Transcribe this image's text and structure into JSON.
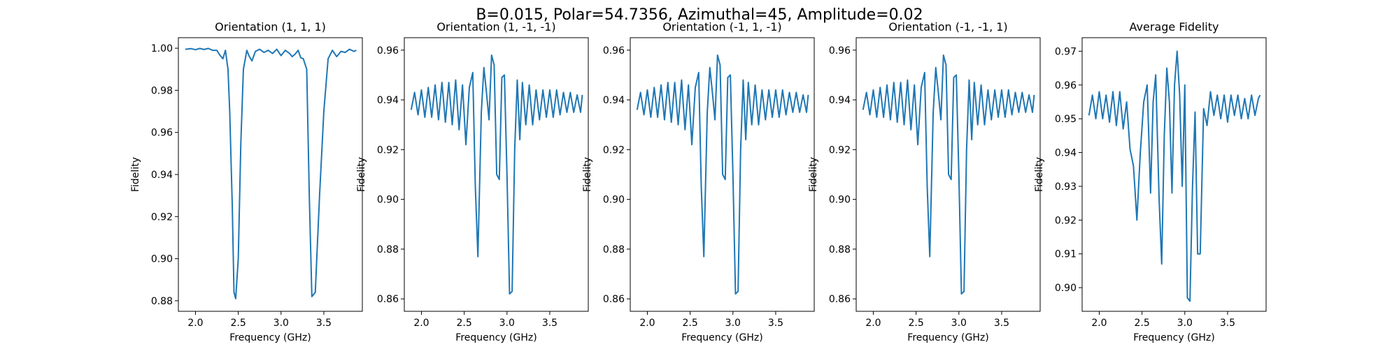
{
  "figure": {
    "suptitle": "B=0.015, Polar=54.7356, Azimuthal=45, Amplitude=0.02",
    "line_color": "#1f77b4"
  },
  "chart_data": [
    {
      "type": "line",
      "title": "Orientation (1, 1, 1)",
      "xlabel": "Frequency (GHz)",
      "ylabel": "Fidelity",
      "xlim": [
        1.8,
        3.95
      ],
      "ylim": [
        0.875,
        1.005
      ],
      "xticks": [
        2.0,
        2.5,
        3.0,
        3.5
      ],
      "xtick_labels": [
        "2.0",
        "2.5",
        "3.0",
        "3.5"
      ],
      "yticks": [
        0.88,
        0.9,
        0.92,
        0.94,
        0.96,
        0.98,
        1.0
      ],
      "ytick_labels": [
        "0.88",
        "0.90",
        "0.92",
        "0.94",
        "0.96",
        "0.98",
        "1.00"
      ],
      "series": [
        {
          "values_x": [
            1.88,
            1.95,
            2.0,
            2.05,
            2.1,
            2.15,
            2.2,
            2.25,
            2.28,
            2.32,
            2.35,
            2.38,
            2.4,
            2.43,
            2.45,
            2.47,
            2.5,
            2.53,
            2.56,
            2.6,
            2.63,
            2.66,
            2.7,
            2.75,
            2.8,
            2.85,
            2.9,
            2.95,
            3.0,
            3.05,
            3.1,
            3.13,
            3.16,
            3.2,
            3.23,
            3.26,
            3.3,
            3.33,
            3.36,
            3.4,
            3.45,
            3.5,
            3.55,
            3.6,
            3.65,
            3.7,
            3.75,
            3.8,
            3.85,
            3.88
          ],
          "values_y": [
            0.9995,
            0.9998,
            0.9993,
            0.9999,
            0.9994,
            0.9999,
            0.999,
            0.999,
            0.997,
            0.995,
            0.999,
            0.99,
            0.97,
            0.925,
            0.884,
            0.881,
            0.9,
            0.955,
            0.99,
            0.999,
            0.996,
            0.994,
            0.9985,
            0.9995,
            0.998,
            0.999,
            0.9975,
            0.9995,
            0.9965,
            0.999,
            0.9975,
            0.996,
            0.997,
            0.999,
            0.9955,
            0.995,
            0.99,
            0.93,
            0.882,
            0.884,
            0.93,
            0.97,
            0.995,
            0.999,
            0.996,
            0.9985,
            0.998,
            0.9995,
            0.9985,
            0.999
          ]
        }
      ]
    },
    {
      "type": "line",
      "title": "Orientation (1, -1, -1)",
      "xlabel": "Frequency (GHz)",
      "ylabel": "Fidelity",
      "xlim": [
        1.8,
        3.95
      ],
      "ylim": [
        0.855,
        0.965
      ],
      "xticks": [
        2.0,
        2.5,
        3.0,
        3.5
      ],
      "xtick_labels": [
        "2.0",
        "2.5",
        "3.0",
        "3.5"
      ],
      "yticks": [
        0.86,
        0.88,
        0.9,
        0.92,
        0.94,
        0.96
      ],
      "ytick_labels": [
        "0.86",
        "0.88",
        "0.90",
        "0.92",
        "0.94",
        "0.96"
      ],
      "series": [
        {
          "values_x": [
            1.88,
            1.92,
            1.96,
            2.0,
            2.04,
            2.08,
            2.12,
            2.16,
            2.2,
            2.24,
            2.28,
            2.32,
            2.36,
            2.4,
            2.44,
            2.48,
            2.52,
            2.56,
            2.6,
            2.63,
            2.66,
            2.7,
            2.73,
            2.76,
            2.79,
            2.82,
            2.85,
            2.88,
            2.91,
            2.94,
            2.97,
            3.0,
            3.03,
            3.06,
            3.09,
            3.12,
            3.15,
            3.18,
            3.22,
            3.26,
            3.3,
            3.34,
            3.38,
            3.42,
            3.46,
            3.5,
            3.54,
            3.58,
            3.62,
            3.66,
            3.7,
            3.74,
            3.78,
            3.82,
            3.86,
            3.88
          ],
          "values_y": [
            0.936,
            0.943,
            0.934,
            0.944,
            0.933,
            0.945,
            0.933,
            0.946,
            0.932,
            0.947,
            0.931,
            0.947,
            0.93,
            0.948,
            0.928,
            0.946,
            0.922,
            0.945,
            0.951,
            0.905,
            0.877,
            0.935,
            0.953,
            0.943,
            0.932,
            0.958,
            0.954,
            0.91,
            0.908,
            0.949,
            0.95,
            0.91,
            0.862,
            0.863,
            0.92,
            0.948,
            0.924,
            0.947,
            0.93,
            0.946,
            0.93,
            0.944,
            0.932,
            0.944,
            0.933,
            0.944,
            0.933,
            0.944,
            0.934,
            0.943,
            0.935,
            0.943,
            0.935,
            0.942,
            0.935,
            0.942
          ]
        }
      ]
    },
    {
      "type": "line",
      "title": "Orientation (-1, 1, -1)",
      "xlabel": "Frequency (GHz)",
      "ylabel": "Fidelity",
      "xlim": [
        1.8,
        3.95
      ],
      "ylim": [
        0.855,
        0.965
      ],
      "xticks": [
        2.0,
        2.5,
        3.0,
        3.5
      ],
      "xtick_labels": [
        "2.0",
        "2.5",
        "3.0",
        "3.5"
      ],
      "yticks": [
        0.86,
        0.88,
        0.9,
        0.92,
        0.94,
        0.96
      ],
      "ytick_labels": [
        "0.86",
        "0.88",
        "0.90",
        "0.92",
        "0.94",
        "0.96"
      ],
      "series": [
        {
          "values_x": [
            1.88,
            1.92,
            1.96,
            2.0,
            2.04,
            2.08,
            2.12,
            2.16,
            2.2,
            2.24,
            2.28,
            2.32,
            2.36,
            2.4,
            2.44,
            2.48,
            2.52,
            2.56,
            2.6,
            2.63,
            2.66,
            2.7,
            2.73,
            2.76,
            2.79,
            2.82,
            2.85,
            2.88,
            2.91,
            2.94,
            2.97,
            3.0,
            3.03,
            3.06,
            3.09,
            3.12,
            3.15,
            3.18,
            3.22,
            3.26,
            3.3,
            3.34,
            3.38,
            3.42,
            3.46,
            3.5,
            3.54,
            3.58,
            3.62,
            3.66,
            3.7,
            3.74,
            3.78,
            3.82,
            3.86,
            3.88
          ],
          "values_y": [
            0.936,
            0.943,
            0.934,
            0.944,
            0.933,
            0.945,
            0.933,
            0.946,
            0.932,
            0.947,
            0.931,
            0.947,
            0.93,
            0.948,
            0.928,
            0.946,
            0.922,
            0.945,
            0.951,
            0.905,
            0.877,
            0.935,
            0.953,
            0.943,
            0.932,
            0.958,
            0.954,
            0.91,
            0.908,
            0.949,
            0.95,
            0.91,
            0.862,
            0.863,
            0.92,
            0.948,
            0.924,
            0.947,
            0.93,
            0.946,
            0.93,
            0.944,
            0.932,
            0.944,
            0.933,
            0.944,
            0.933,
            0.944,
            0.934,
            0.943,
            0.935,
            0.943,
            0.935,
            0.942,
            0.935,
            0.942
          ]
        }
      ]
    },
    {
      "type": "line",
      "title": "Orientation (-1, -1, 1)",
      "xlabel": "Frequency (GHz)",
      "ylabel": "Fidelity",
      "xlim": [
        1.8,
        3.95
      ],
      "ylim": [
        0.855,
        0.965
      ],
      "xticks": [
        2.0,
        2.5,
        3.0,
        3.5
      ],
      "xtick_labels": [
        "2.0",
        "2.5",
        "3.0",
        "3.5"
      ],
      "yticks": [
        0.86,
        0.88,
        0.9,
        0.92,
        0.94,
        0.96
      ],
      "ytick_labels": [
        "0.86",
        "0.88",
        "0.90",
        "0.92",
        "0.94",
        "0.96"
      ],
      "series": [
        {
          "values_x": [
            1.88,
            1.92,
            1.96,
            2.0,
            2.04,
            2.08,
            2.12,
            2.16,
            2.2,
            2.24,
            2.28,
            2.32,
            2.36,
            2.4,
            2.44,
            2.48,
            2.52,
            2.56,
            2.6,
            2.63,
            2.66,
            2.7,
            2.73,
            2.76,
            2.79,
            2.82,
            2.85,
            2.88,
            2.91,
            2.94,
            2.97,
            3.0,
            3.03,
            3.06,
            3.09,
            3.12,
            3.15,
            3.18,
            3.22,
            3.26,
            3.3,
            3.34,
            3.38,
            3.42,
            3.46,
            3.5,
            3.54,
            3.58,
            3.62,
            3.66,
            3.7,
            3.74,
            3.78,
            3.82,
            3.86,
            3.88
          ],
          "values_y": [
            0.936,
            0.943,
            0.934,
            0.944,
            0.933,
            0.945,
            0.933,
            0.946,
            0.932,
            0.947,
            0.931,
            0.947,
            0.93,
            0.948,
            0.928,
            0.946,
            0.922,
            0.945,
            0.951,
            0.905,
            0.877,
            0.935,
            0.953,
            0.943,
            0.932,
            0.958,
            0.954,
            0.91,
            0.908,
            0.949,
            0.95,
            0.91,
            0.862,
            0.863,
            0.92,
            0.948,
            0.924,
            0.947,
            0.93,
            0.946,
            0.93,
            0.944,
            0.932,
            0.944,
            0.933,
            0.944,
            0.933,
            0.944,
            0.934,
            0.943,
            0.935,
            0.943,
            0.935,
            0.942,
            0.935,
            0.942
          ]
        }
      ]
    },
    {
      "type": "line",
      "title": "Average Fidelity",
      "xlabel": "Frequency (GHz)",
      "ylabel": "Fidelity",
      "xlim": [
        1.8,
        3.95
      ],
      "ylim": [
        0.893,
        0.974
      ],
      "xticks": [
        2.0,
        2.5,
        3.0,
        3.5
      ],
      "xtick_labels": [
        "2.0",
        "2.5",
        "3.0",
        "3.5"
      ],
      "yticks": [
        0.9,
        0.91,
        0.92,
        0.93,
        0.94,
        0.95,
        0.96,
        0.97
      ],
      "ytick_labels": [
        "0.90",
        "0.91",
        "0.92",
        "0.93",
        "0.94",
        "0.95",
        "0.96",
        "0.97"
      ],
      "series": [
        {
          "values_x": [
            1.88,
            1.92,
            1.96,
            2.0,
            2.04,
            2.08,
            2.12,
            2.16,
            2.2,
            2.24,
            2.28,
            2.32,
            2.36,
            2.4,
            2.44,
            2.48,
            2.52,
            2.56,
            2.6,
            2.63,
            2.66,
            2.7,
            2.73,
            2.76,
            2.79,
            2.82,
            2.85,
            2.88,
            2.91,
            2.94,
            2.97,
            3.0,
            3.03,
            3.06,
            3.09,
            3.12,
            3.15,
            3.18,
            3.22,
            3.26,
            3.3,
            3.34,
            3.38,
            3.42,
            3.46,
            3.5,
            3.54,
            3.58,
            3.62,
            3.66,
            3.7,
            3.74,
            3.78,
            3.82,
            3.86,
            3.88
          ],
          "values_y": [
            0.951,
            0.957,
            0.95,
            0.958,
            0.95,
            0.957,
            0.949,
            0.958,
            0.948,
            0.958,
            0.947,
            0.955,
            0.941,
            0.936,
            0.92,
            0.94,
            0.955,
            0.96,
            0.928,
            0.955,
            0.963,
            0.926,
            0.907,
            0.945,
            0.965,
            0.955,
            0.928,
            0.96,
            0.97,
            0.957,
            0.93,
            0.96,
            0.897,
            0.896,
            0.93,
            0.952,
            0.91,
            0.91,
            0.953,
            0.948,
            0.958,
            0.951,
            0.957,
            0.95,
            0.957,
            0.949,
            0.957,
            0.951,
            0.957,
            0.95,
            0.956,
            0.95,
            0.957,
            0.951,
            0.956,
            0.957
          ]
        }
      ]
    }
  ]
}
